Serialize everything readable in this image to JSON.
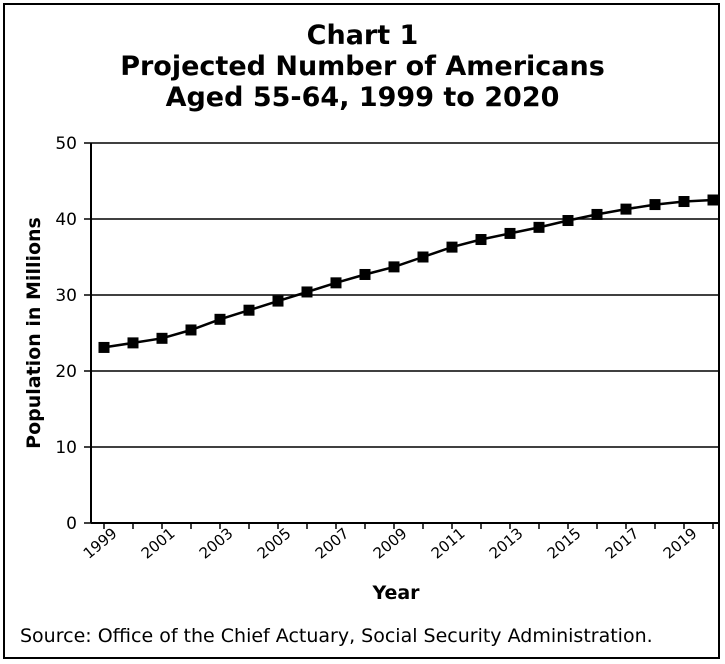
{
  "chart_data": {
    "type": "line",
    "title": [
      "Chart 1",
      "Projected Number of Americans",
      "Aged 55-64, 1999 to 2020"
    ],
    "xlabel": "Year",
    "ylabel": "Population in Millions",
    "ylim": [
      0,
      50
    ],
    "yticks": [
      0,
      10,
      20,
      30,
      40,
      50
    ],
    "xtick_labels": [
      "1999",
      "2001",
      "2003",
      "2005",
      "2007",
      "2009",
      "2011",
      "2013",
      "2015",
      "2017",
      "2019"
    ],
    "grid": "horizontal",
    "series": [
      {
        "x": [
          1999,
          2000,
          2001,
          2002,
          2003,
          2004,
          2005,
          2006,
          2007,
          2008,
          2009,
          2010,
          2011,
          2012,
          2013,
          2014,
          2015,
          2016,
          2017,
          2018,
          2019,
          2020
        ],
        "values": [
          23.1,
          23.7,
          24.3,
          25.4,
          26.8,
          28.0,
          29.2,
          30.4,
          31.6,
          32.7,
          33.7,
          35.0,
          36.3,
          37.3,
          38.1,
          38.9,
          39.8,
          40.6,
          41.3,
          41.9,
          42.3,
          42.5
        ]
      }
    ],
    "colors": {
      "line": "#000000",
      "marker": "#000000",
      "grid": "#000000"
    }
  },
  "source_note": "Source:  Office of the Chief Actuary, Social Security Administration."
}
